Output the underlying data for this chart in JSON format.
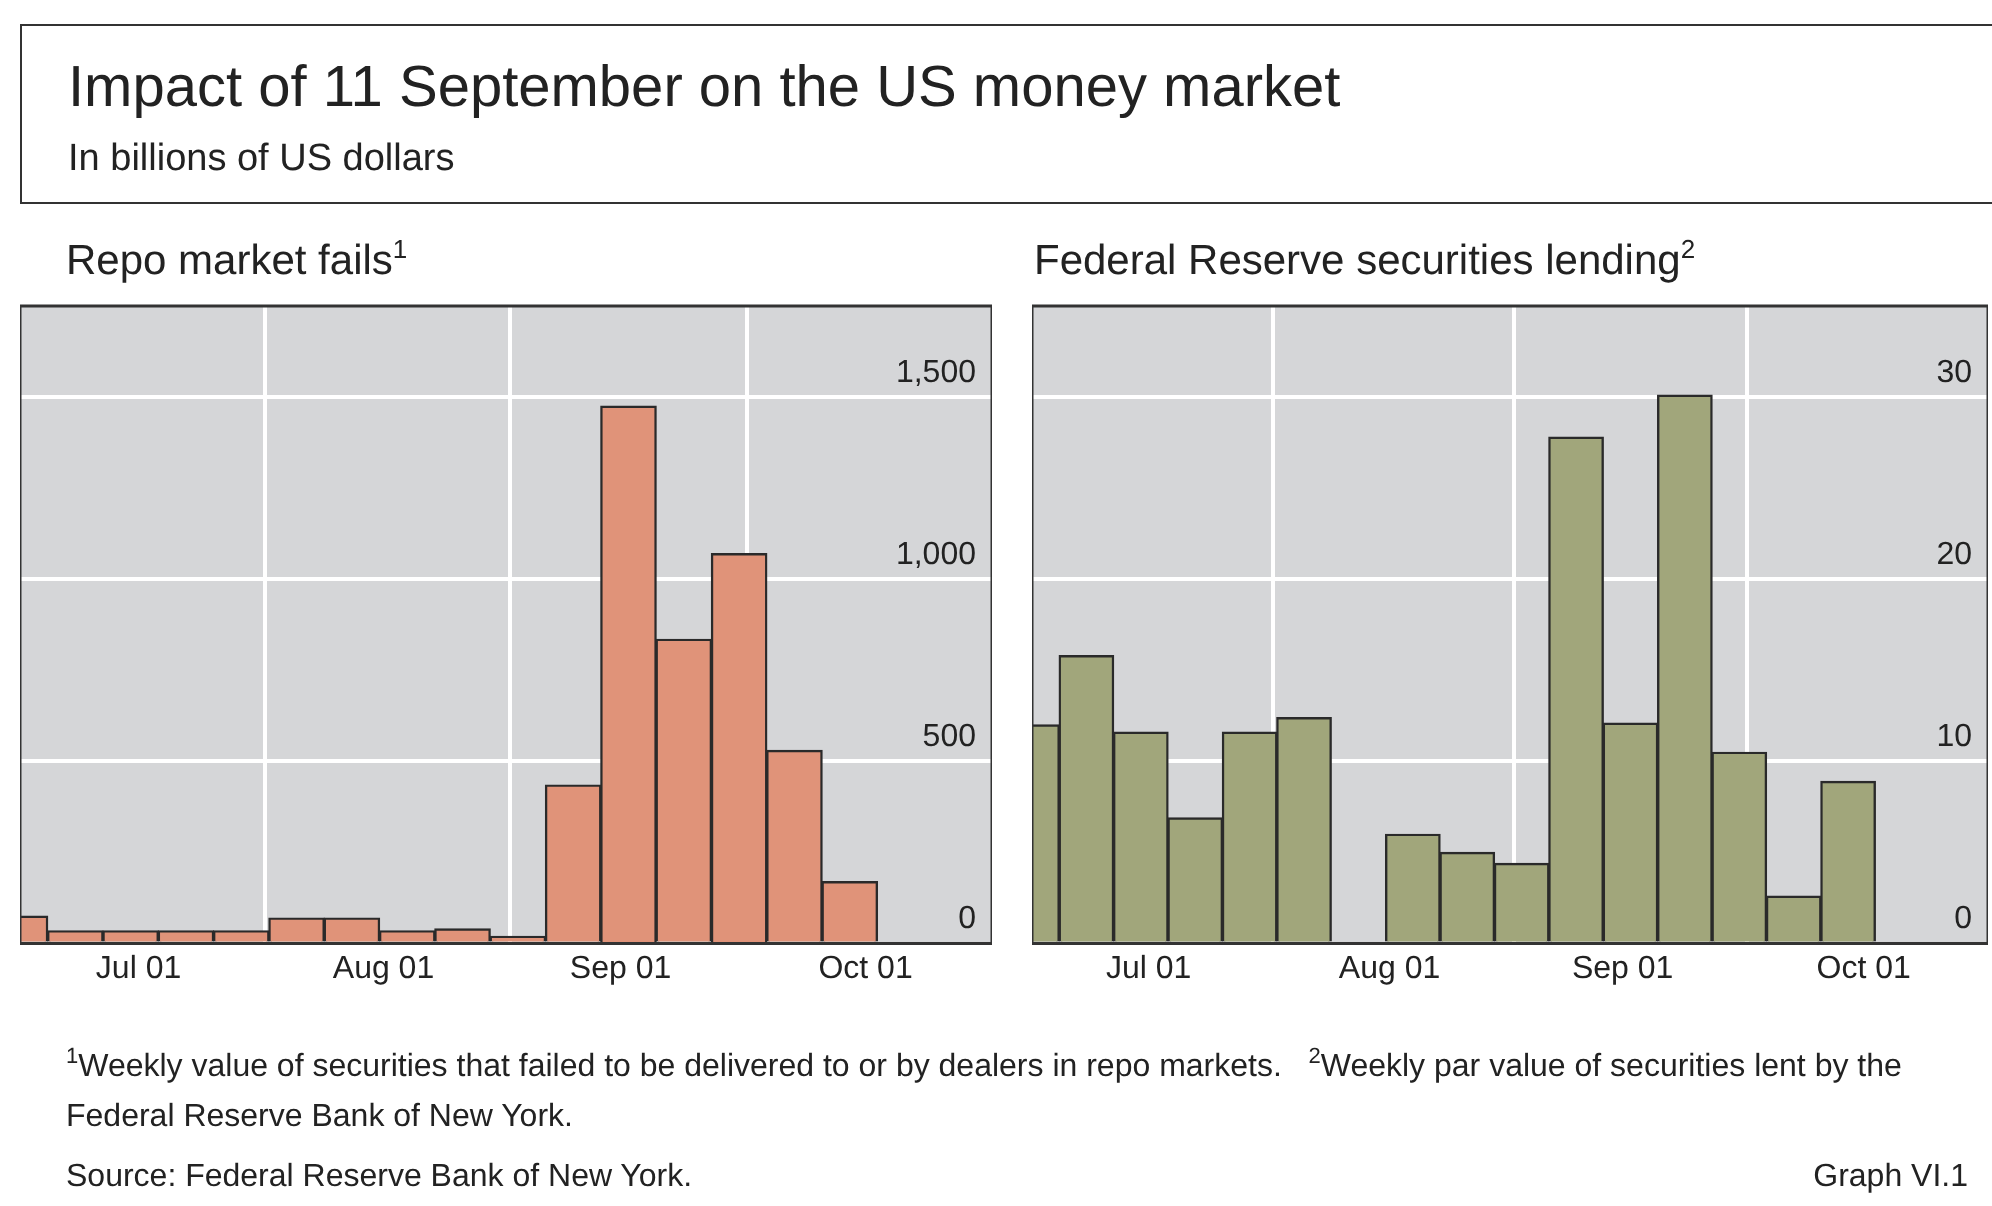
{
  "chart_data": [
    {
      "type": "bar",
      "title": "Impact of 11 September on the US money market",
      "subtitle": "In billions of US dollars",
      "ylabel": "Repo market fails$^{1}$",
      "x": [
        "2001-07-01",
        "2001-07-08",
        "2001-07-15",
        "2001-07-22",
        "2001-07-29",
        "2001-08-05",
        "2001-08-12",
        "2001-08-19",
        "2001-08-26",
        "2001-09-02",
        "2001-09-09",
        "2001-09-16",
        "2001-09-23",
        "2001-09-30",
        "2001-10-07",
        "2001-10-14"
      ],
      "values": [
        75,
        35,
        35,
        35,
        35,
        70,
        70,
        35,
        40,
        20,
        435,
        1475,
        835,
        1070,
        530,
        170
      ],
      "color": "#e09379",
      "xlim": [
        "2001-07-01",
        "2001-11-01"
      ],
      "xticks": [
        {
          "value": "2001-07-16",
          "label": "Jul 01"
        },
        {
          "value": "2001-08-01",
          "label": null
        },
        {
          "value": "2001-08-16",
          "label": "Aug 01"
        },
        {
          "value": "2001-09-01",
          "label": null
        },
        {
          "value": "2001-09-15",
          "label": "Sep 01"
        },
        {
          "value": "2001-10-01",
          "label": null
        },
        {
          "value": "2001-10-16",
          "label": "Oct 01"
        }
      ],
      "ylim": [
        0,
        1750
      ],
      "yticks": [
        0,
        500,
        {
          "value": 1000,
          "label": "1,000"
        },
        {
          "value": 1500,
          "label": "1,500"
        }
      ],
      "grid": true,
      "legend": false,
      "annotations": [
        "$^{1}$Weekly value of securities that failed to be delivered to or by dealers in repo markets.",
        "Source: Federal Reserve Bank of New York."
      ]
    },
    {
      "type": "bar",
      "ylabel": "Federal Reserve securities lending$^{2}$",
      "x": [
        "2001-07-01",
        "2001-07-08",
        "2001-07-15",
        "2001-07-22",
        "2001-07-29",
        "2001-08-05",
        "2001-08-12",
        "2001-08-19",
        "2001-08-26",
        "2001-09-02",
        "2001-09-09",
        "2001-09-16",
        "2001-09-23",
        "2001-09-30",
        "2001-10-07",
        "2001-10-14"
      ],
      "values": [
        12.0,
        15.8,
        11.6,
        6.9,
        11.6,
        12.4,
        0,
        6.0,
        5.0,
        4.4,
        27.8,
        12.1,
        30.1,
        10.5,
        2.6,
        8.9
      ],
      "color": "#a1a67b",
      "xlim": [
        "2001-07-01",
        "2001-11-01"
      ],
      "xticks": [
        {
          "value": "2001-07-16",
          "label": "Jul 01"
        },
        {
          "value": "2001-08-01",
          "label": null
        },
        {
          "value": "2001-08-16",
          "label": "Aug 01"
        },
        {
          "value": "2001-09-01",
          "label": null
        },
        {
          "value": "2001-09-15",
          "label": "Sep 01"
        },
        {
          "value": "2001-10-01",
          "label": null
        },
        {
          "value": "2001-10-16",
          "label": "Oct 01"
        }
      ],
      "ylim": [
        0,
        35
      ],
      "yticks": [
        0,
        10,
        20,
        30
      ],
      "grid": true,
      "legend": false,
      "annotations": [
        "$^{2}$Weekly par value of securities lent by the Federal Reserve Bank of New York.",
        "Graph VI.1"
      ]
    }
  ]
}
